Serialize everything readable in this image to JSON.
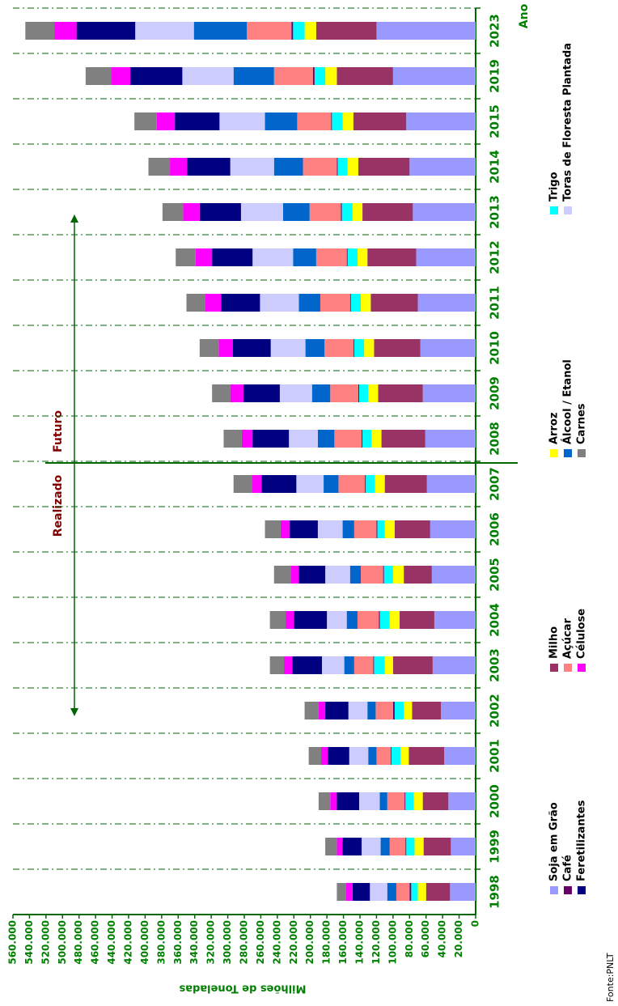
{
  "chart_data": {
    "type": "stacked_bar",
    "y_label": "Milhões de Toneladas",
    "x_label": "Ano",
    "annotations": [
      "Realizado",
      "Futuro"
    ],
    "source": "Fonte:PNLT",
    "categories": [
      "1998",
      "1999",
      "2000",
      "2001",
      "2002",
      "2003",
      "2004",
      "2005",
      "2006",
      "2007",
      "2008",
      "2009",
      "2010",
      "2011",
      "2012",
      "2013",
      "2014",
      "2015",
      "2019",
      "2023"
    ],
    "series": [
      {
        "name": "Soja em Grão",
        "color": "#9999ff",
        "values": [
          31000,
          30000,
          33000,
          38000,
          42000,
          52000,
          50000,
          53000,
          55000,
          59000,
          61000,
          64000,
          67000,
          70000,
          72000,
          76000,
          80000,
          84000,
          100000,
          120000
        ]
      },
      {
        "name": "Milho",
        "color": "#993366",
        "values": [
          29000,
          33000,
          31000,
          43000,
          35000,
          48000,
          42000,
          34000,
          43000,
          51000,
          53000,
          54000,
          56000,
          57000,
          59000,
          61000,
          62000,
          64000,
          68000,
          73000
        ]
      },
      {
        "name": "Arroz",
        "color": "#ffff00",
        "values": [
          10000,
          11000,
          11000,
          10000,
          10000,
          10000,
          12000,
          13000,
          12000,
          12000,
          12000,
          12000,
          12000,
          12000,
          12000,
          12000,
          13000,
          13000,
          14000,
          14000
        ]
      },
      {
        "name": "Trigo",
        "color": "#00ffff",
        "values": [
          8000,
          10000,
          10000,
          11000,
          11000,
          13000,
          12000,
          11000,
          9000,
          11000,
          11000,
          11000,
          12000,
          12000,
          12000,
          13000,
          12000,
          13000,
          13000,
          14000
        ]
      },
      {
        "name": "Café",
        "color": "#660066",
        "values": [
          2000,
          1000,
          1000,
          1000,
          2000,
          1000,
          1000,
          1000,
          1000,
          1000,
          1000,
          1000,
          1000,
          1000,
          1000,
          1000,
          1000,
          1000,
          2000,
          2000
        ]
      },
      {
        "name": "Açúcar",
        "color": "#ff8080",
        "values": [
          16000,
          19000,
          21000,
          17000,
          21000,
          23000,
          26000,
          27000,
          27000,
          32000,
          33000,
          34000,
          35000,
          36000,
          37000,
          38000,
          41000,
          41000,
          47000,
          54000
        ]
      },
      {
        "name": "Álcool / Etanol",
        "color": "#0066cc",
        "values": [
          11000,
          11000,
          9000,
          10000,
          10000,
          12000,
          13000,
          13000,
          14000,
          18000,
          20000,
          22000,
          23000,
          26000,
          28000,
          32000,
          35000,
          39000,
          49000,
          64000
        ]
      },
      {
        "name": "Toras de Floresta Plantada",
        "color": "#ccccff",
        "values": [
          21000,
          23000,
          25000,
          23000,
          23000,
          27000,
          24000,
          30000,
          30000,
          33000,
          35000,
          39000,
          42000,
          47000,
          49000,
          51000,
          53000,
          55000,
          62000,
          71000
        ]
      },
      {
        "name": "Feretilizantes",
        "color": "#000080",
        "values": [
          21000,
          23000,
          27000,
          26000,
          28000,
          36000,
          40000,
          32000,
          34000,
          42000,
          44000,
          44000,
          46000,
          47000,
          49000,
          50000,
          52000,
          54000,
          63000,
          71000
        ]
      },
      {
        "name": "Célulose",
        "color": "#ff00ff",
        "values": [
          8000,
          7000,
          8000,
          8000,
          8000,
          10000,
          10000,
          10000,
          11000,
          12000,
          13000,
          16000,
          17000,
          19000,
          20000,
          20000,
          21000,
          22000,
          23000,
          27000
        ]
      },
      {
        "name": "Carnes",
        "color": "#808080",
        "values": [
          11000,
          14000,
          14000,
          15000,
          17000,
          17000,
          19000,
          20000,
          19000,
          22000,
          22000,
          22000,
          23000,
          23000,
          24000,
          25000,
          26000,
          27000,
          31000,
          35000
        ]
      }
    ],
    "ylim": [
      0,
      560000
    ],
    "yticks": [
      0,
      {
        "value": 20000,
        "label": "20.000"
      },
      {
        "value": 40000,
        "label": "40.000"
      },
      {
        "value": 60000,
        "label": "60.000"
      },
      {
        "value": 80000,
        "label": "80.000"
      },
      {
        "value": 100000,
        "label": "100.000"
      },
      {
        "value": 120000,
        "label": "120.000"
      },
      {
        "value": 140000,
        "label": "140.000"
      },
      {
        "value": 160000,
        "label": "160.000"
      },
      {
        "value": 180000,
        "label": "180.000"
      },
      {
        "value": 200000,
        "label": "200.000"
      },
      {
        "value": 220000,
        "label": "220.000"
      },
      {
        "value": 240000,
        "label": "240.000"
      },
      {
        "value": 260000,
        "label": "260.000"
      },
      {
        "value": 280000,
        "label": "280.000"
      },
      {
        "value": 300000,
        "label": "300.000"
      },
      {
        "value": 320000,
        "label": "320.000"
      },
      {
        "value": 340000,
        "label": "340.000"
      },
      {
        "value": 360000,
        "label": "360.000"
      },
      {
        "value": 380000,
        "label": "380.000"
      },
      {
        "value": 400000,
        "label": "400.000"
      },
      {
        "value": 420000,
        "label": "420.000"
      },
      {
        "value": 440000,
        "label": "440.000"
      },
      {
        "value": 460000,
        "label": "460.000"
      },
      {
        "value": 480000,
        "label": "480.000"
      },
      {
        "value": 500000,
        "label": "500.000"
      },
      {
        "value": 520000,
        "label": "520.000"
      },
      {
        "value": 540000,
        "label": "540.000"
      },
      {
        "value": 560000,
        "label": "560.000"
      }
    ],
    "grid": true
  }
}
